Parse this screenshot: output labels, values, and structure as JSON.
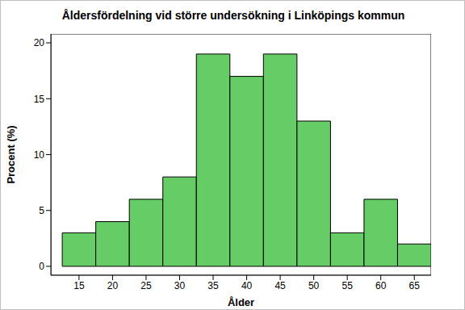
{
  "chart_data": {
    "type": "histogram",
    "title": "Åldersfördelning vid större undersökning i Linköpings kommun",
    "x_label": "Ålder",
    "y_label": "Procent (%)",
    "bins": [
      12.5,
      17.5,
      22.5,
      27.5,
      32.5,
      37.5,
      42.5,
      47.5,
      52.5,
      57.5,
      62.5,
      67.5
    ],
    "values": [
      3,
      4,
      6,
      8,
      19,
      17,
      19,
      13,
      3,
      6,
      2
    ],
    "color": "#66cc66",
    "xlim": [
      10.8,
      67.5
    ],
    "xticks": [
      15,
      20,
      25,
      30,
      35,
      40,
      45,
      50,
      55,
      60,
      65
    ],
    "ylim": [
      -0.8,
      20.8
    ],
    "yticks": [
      0,
      5,
      10,
      15,
      20
    ],
    "grid": false
  }
}
